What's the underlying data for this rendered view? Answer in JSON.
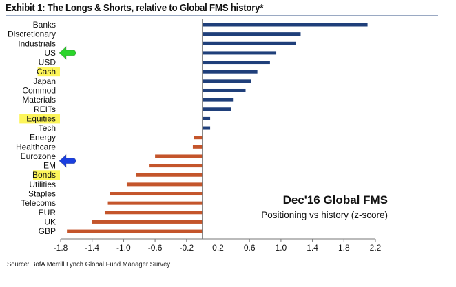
{
  "title": "Exhibit 1: The Longs & Shorts, relative to Global FMS history*",
  "source": "Source: BofA Merrill Lynch Global Fund Manager Survey",
  "chart_data": {
    "type": "bar",
    "orientation": "horizontal",
    "categories": [
      "Banks",
      "Discretionary",
      "Industrials",
      "US",
      "USD",
      "Cash",
      "Japan",
      "Commod",
      "Materials",
      "REITs",
      "Equities",
      "Tech",
      "Energy",
      "Healthcare",
      "Eurozone",
      "EM",
      "Bonds",
      "Utilities",
      "Staples",
      "Telecoms",
      "EUR",
      "UK",
      "GBP"
    ],
    "values": [
      2.1,
      1.25,
      1.19,
      0.94,
      0.86,
      0.7,
      0.62,
      0.55,
      0.39,
      0.37,
      0.1,
      0.1,
      -0.11,
      -0.12,
      -0.6,
      -0.67,
      -0.84,
      -0.96,
      -1.17,
      -1.2,
      -1.24,
      -1.4,
      -1.72
    ],
    "xlim": [
      -1.8,
      2.2
    ],
    "ticks": [
      "-1.8",
      "-1.4",
      "-1.0",
      "-0.6",
      "-0.2",
      "0.2",
      "0.6",
      "1.0",
      "1.4",
      "1.8",
      "2.2"
    ],
    "highlighted": [
      "Cash",
      "Equities",
      "Bonds"
    ],
    "arrows": [
      {
        "category": "US",
        "color": "#2bd52b"
      },
      {
        "category": "Eurozone",
        "color": "#1a3fe0"
      }
    ],
    "annotation_title": "Dec'16 Global FMS",
    "annotation_subtitle": "Positioning vs history (z-score)",
    "colors": {
      "positive": "#1f3f7a",
      "negative": "#c4552b",
      "highlight": "#fdf55a"
    },
    "grid": false
  }
}
